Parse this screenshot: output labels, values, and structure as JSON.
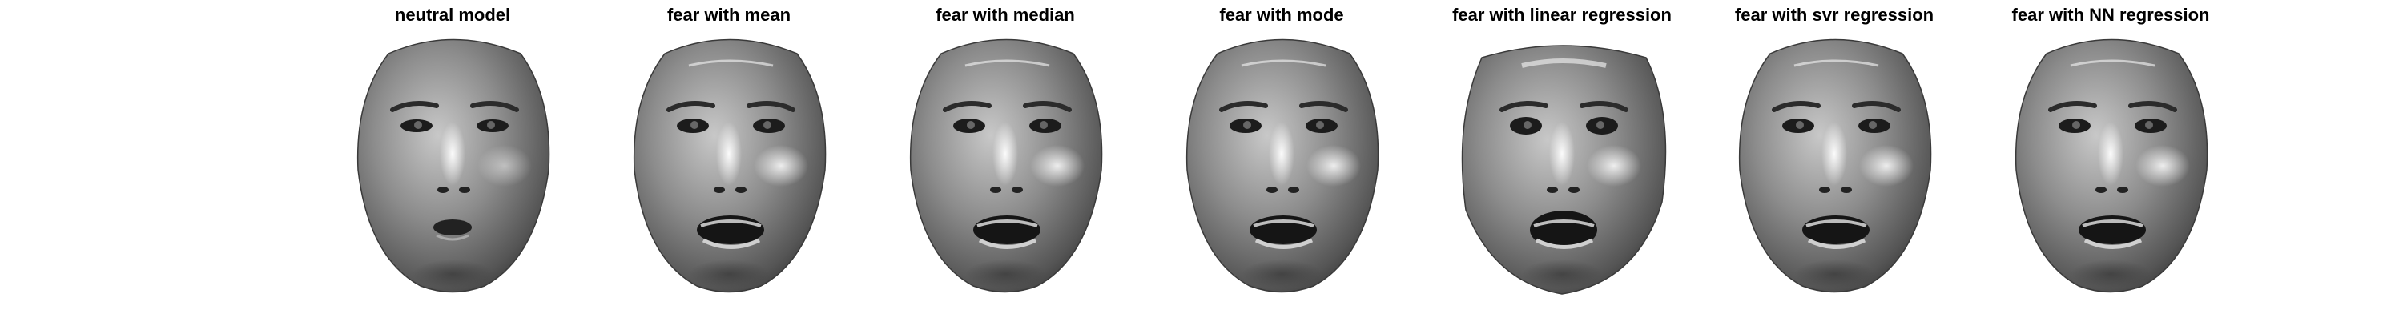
{
  "figure": {
    "panels": [
      {
        "title": "neutral model",
        "expression": "neutral"
      },
      {
        "title": "fear with mean",
        "expression": "fear"
      },
      {
        "title": "fear with median",
        "expression": "fear"
      },
      {
        "title": "fear with mode",
        "expression": "fear"
      },
      {
        "title": "fear with linear regression",
        "expression": "fear-distorted"
      },
      {
        "title": "fear with svr regression",
        "expression": "fear"
      },
      {
        "title": "fear with NN regression",
        "expression": "fear"
      }
    ]
  }
}
